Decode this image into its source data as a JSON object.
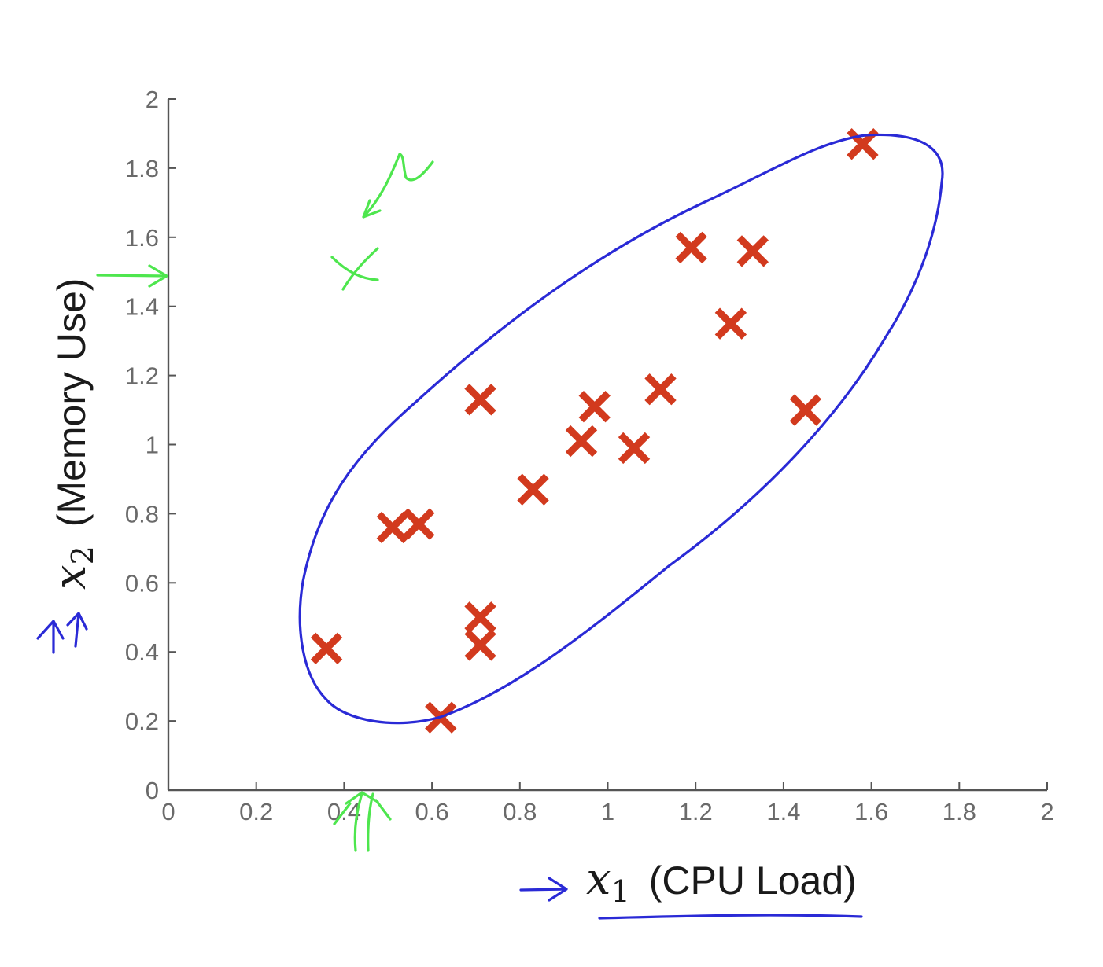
{
  "chart_data": {
    "type": "scatter",
    "title": "",
    "xlabel": {
      "symbol": "x",
      "subscript": "1",
      "text": "(CPU Load)"
    },
    "ylabel": {
      "symbol": "x",
      "subscript": "2",
      "text": "(Memory Use)"
    },
    "xlim": [
      0,
      2
    ],
    "ylim": [
      0,
      2
    ],
    "xticks": [
      "0",
      "0.2",
      "0.4",
      "0.6",
      "0.8",
      "1",
      "1.2",
      "1.4",
      "1.6",
      "1.8",
      "2"
    ],
    "yticks": [
      "0",
      "0.2",
      "0.4",
      "0.6",
      "0.8",
      "1",
      "1.2",
      "1.4",
      "1.6",
      "1.8",
      "2"
    ],
    "grid": false,
    "marker": "x",
    "marker_color": "#d23a1e",
    "points": [
      {
        "x": 0.36,
        "y": 0.41
      },
      {
        "x": 0.51,
        "y": 0.76
      },
      {
        "x": 0.57,
        "y": 0.77
      },
      {
        "x": 0.62,
        "y": 0.21
      },
      {
        "x": 0.71,
        "y": 0.5
      },
      {
        "x": 0.71,
        "y": 0.42
      },
      {
        "x": 0.71,
        "y": 1.13
      },
      {
        "x": 0.83,
        "y": 0.87
      },
      {
        "x": 0.94,
        "y": 1.01
      },
      {
        "x": 0.97,
        "y": 1.11
      },
      {
        "x": 1.06,
        "y": 0.99
      },
      {
        "x": 1.12,
        "y": 1.16
      },
      {
        "x": 1.19,
        "y": 1.57
      },
      {
        "x": 1.28,
        "y": 1.35
      },
      {
        "x": 1.33,
        "y": 1.56
      },
      {
        "x": 1.45,
        "y": 1.1
      },
      {
        "x": 1.58,
        "y": 1.87
      }
    ],
    "annotations": {
      "ink_colors": {
        "blue": "#2a2ad6",
        "green": "#4ee64e"
      },
      "anomaly_point": {
        "x": 0.43,
        "y": 1.5
      }
    }
  }
}
